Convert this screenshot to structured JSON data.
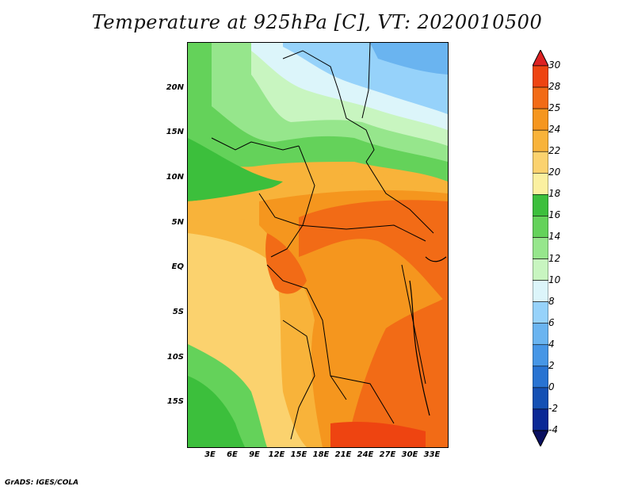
{
  "title": "Temperature at 925hPa [C], VT: 2020010500",
  "credit": "GrADS: IGES/COLA",
  "map": {
    "lat_labels": [
      "20N",
      "15N",
      "10N",
      "5N",
      "EQ",
      "5S",
      "10S",
      "15S"
    ],
    "lon_labels": [
      "3E",
      "6E",
      "9E",
      "12E",
      "15E",
      "18E",
      "21E",
      "24E",
      "27E",
      "30E",
      "33E"
    ]
  },
  "colorbar": {
    "labels": [
      "30",
      "28",
      "25",
      "24",
      "22",
      "20",
      "18",
      "16",
      "14",
      "12",
      "10",
      "8",
      "6",
      "4",
      "2",
      "0",
      "-2",
      "-4"
    ],
    "colors": [
      "#dd2222",
      "#ee4411",
      "#f26b16",
      "#f5961e",
      "#f8b33a",
      "#fbd26e",
      "#fbf0a0",
      "#3cbf3c",
      "#64d25a",
      "#96e68c",
      "#c8f5c0",
      "#dcf5fa",
      "#96d2fa",
      "#6ab4f0",
      "#4696e6",
      "#2873d2",
      "#1450b4",
      "#0a2896",
      "#0a1060"
    ]
  }
}
